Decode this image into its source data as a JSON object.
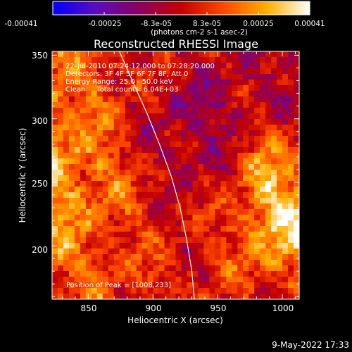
{
  "chart_data": {
    "type": "heatmap",
    "title": "Reconstructed RHESSI Image",
    "xlabel": "Heliocentric X (arcsec)",
    "ylabel": "Heliocentric Y (arcsec)",
    "xlim": [
      822,
      1013
    ],
    "ylim": [
      158,
      353
    ],
    "x_ticks": [
      850,
      900,
      950,
      1000
    ],
    "y_ticks": [
      200,
      250,
      300,
      350
    ],
    "colorbar": {
      "ticks": [
        "-0.00041",
        "-0.00025",
        "-8.3e-05",
        "8.3e-05",
        "0.00025",
        "0.00041"
      ],
      "range": [
        -0.00041,
        0.00041
      ],
      "unit_label": "(photons cm-2 s-1 asec-2)",
      "colors": [
        "#0000ff",
        "#5a0dbd",
        "#8a0060",
        "#c40000",
        "#ff4a00",
        "#ffb000",
        "#ffffff"
      ]
    },
    "annotations": [
      "22-Jul-2010 07:24:12.000 to 07:28:20.000",
      "Detectors: 3F 4F 5F 6F 7F 8F, Att 0",
      "Energy Range: 25.0 - 50.0 keV",
      "Clean     Total counts: 6.04E+03"
    ],
    "peak_label": "Position of Peak = [1008,233]",
    "peak": [
      1008,
      233
    ],
    "limb_curve": [
      [
        874,
        353
      ],
      [
        884,
        330
      ],
      [
        895,
        305
      ],
      [
        905,
        280
      ],
      [
        914,
        255
      ],
      [
        921,
        230
      ],
      [
        926,
        205
      ],
      [
        930,
        180
      ],
      [
        932,
        158
      ]
    ],
    "grid": false
  },
  "footer": {
    "timestamp": "9-May-2022 17:33"
  }
}
